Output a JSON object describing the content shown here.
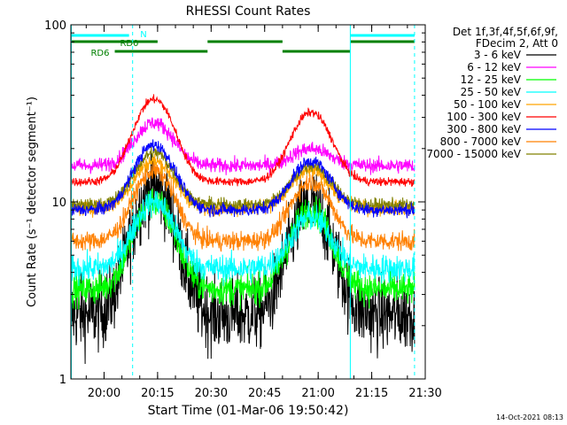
{
  "chart_data": {
    "type": "line",
    "title": "RHESSI Count Rates",
    "xlabel": "Start Time (01-Mar-06 19:50:42)",
    "ylabel": "Count Rate (s⁻¹ detector segment⁻¹)",
    "yscale": "log",
    "ylim": [
      1,
      100
    ],
    "xlim": [
      "19:50:42",
      "21:30:00"
    ],
    "x_ticks": [
      "20:00",
      "20:15",
      "20:30",
      "20:45",
      "21:00",
      "21:15",
      "21:30"
    ],
    "y_ticks": [
      "1",
      "10",
      "100"
    ],
    "legend_header": [
      "Det 1f,3f,4f,5f,6f,9f,",
      "FDecim 2, Att 0"
    ],
    "legend_position": "right",
    "series": [
      {
        "name": "3 - 6 keV",
        "color": "#000000",
        "base": 2.3,
        "peak1": 12,
        "peak2": 9.5,
        "noise": 0.35
      },
      {
        "name": "6 - 12 keV",
        "color": "#ff00ff",
        "base": 16,
        "peak1": 28,
        "peak2": 20,
        "noise": 0.07
      },
      {
        "name": "12 - 25 keV",
        "color": "#00ff00",
        "base": 3.2,
        "peak1": 10,
        "peak2": 9,
        "noise": 0.15
      },
      {
        "name": "25 - 50 keV",
        "color": "#00ffff",
        "base": 4.2,
        "peak1": 10,
        "peak2": 8.2,
        "noise": 0.13
      },
      {
        "name": "50 - 100 keV",
        "color": "#ffa500",
        "base": 9.2,
        "peak1": 17,
        "peak2": 15,
        "noise": 0.07
      },
      {
        "name": "100 - 300 keV",
        "color": "#ff0000",
        "base": 13,
        "peak1": 38,
        "peak2": 32,
        "noise": 0.04
      },
      {
        "name": "300 - 800 keV",
        "color": "#0000ff",
        "base": 9,
        "peak1": 21,
        "peak2": 17,
        "noise": 0.06
      },
      {
        "name": "800 - 7000 keV",
        "color": "#ff8000",
        "base": 6,
        "peak1": 15,
        "peak2": 13,
        "noise": 0.09
      },
      {
        "name": "7000 - 15000 keV",
        "color": "#808000",
        "base": 9.6,
        "peak1": 19,
        "peak2": 16,
        "noise": 0.06
      }
    ],
    "flag_bars": [
      {
        "label": "N",
        "color": "#00ffff",
        "segments": [
          [
            "19:50:42",
            "20:07:00"
          ],
          [
            "21:09:00",
            "21:27:00"
          ]
        ]
      },
      {
        "label": "RD0",
        "color": "#008000",
        "segments": [
          [
            "19:50:42",
            "20:15:00"
          ],
          [
            "20:29:00",
            "20:50:00"
          ],
          [
            "21:09:00",
            "21:27:00"
          ]
        ]
      },
      {
        "label": "RD6",
        "color": "#008000",
        "segments": [
          [
            "20:03:00",
            "20:29:00"
          ],
          [
            "20:50:00",
            "21:09:00"
          ]
        ]
      }
    ],
    "solid_markers": [
      "19:50:42",
      "21:09:00"
    ],
    "dashed_markers": [
      "20:08:00",
      "21:27:00"
    ],
    "timestamp": "14-Oct-2021 08:13"
  }
}
